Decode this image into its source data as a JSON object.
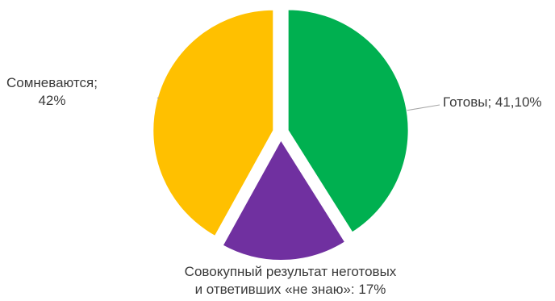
{
  "chart_data": {
    "type": "pie",
    "title": "",
    "slices": [
      {
        "name": "Готовы",
        "value": 41.1,
        "color": "#00B050",
        "label_lines": [
          "Готовы; 41,10%"
        ]
      },
      {
        "name": "Совокупный результат неготовых и ответивших «не знаю»",
        "value": 17,
        "color": "#7030A0",
        "label_lines": [
          "Совокупный результат неготовых",
          "и ответивших «не знаю»: 17%"
        ]
      },
      {
        "name": "Сомневаются",
        "value": 42,
        "color": "#FFC000",
        "label_lines": [
          "Сомневаются;",
          "42%"
        ]
      }
    ],
    "legend": "none",
    "start": "top",
    "direction": "clockwise",
    "exploded": true,
    "leader_lines": true
  }
}
